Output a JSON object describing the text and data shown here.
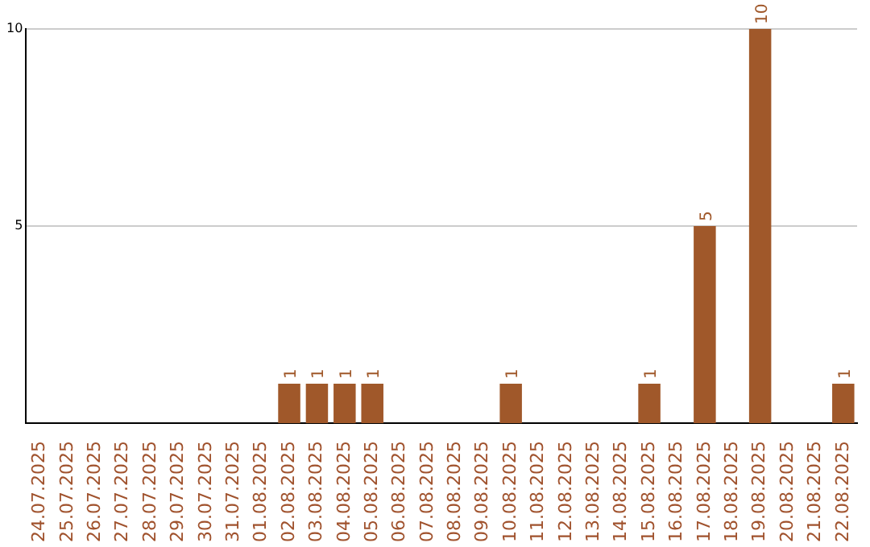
{
  "chart_data": {
    "type": "bar",
    "categories": [
      "24.07.2025",
      "25.07.2025",
      "26.07.2025",
      "27.07.2025",
      "28.07.2025",
      "29.07.2025",
      "30.07.2025",
      "31.07.2025",
      "01.08.2025",
      "02.08.2025",
      "03.08.2025",
      "04.08.2025",
      "05.08.2025",
      "06.08.2025",
      "07.08.2025",
      "08.08.2025",
      "09.08.2025",
      "10.08.2025",
      "11.08.2025",
      "12.08.2025",
      "13.08.2025",
      "14.08.2025",
      "15.08.2025",
      "16.08.2025",
      "17.08.2025",
      "18.08.2025",
      "19.08.2025",
      "20.08.2025",
      "21.08.2025",
      "22.08.2025"
    ],
    "values": [
      0,
      0,
      0,
      0,
      0,
      0,
      0,
      0,
      0,
      1,
      1,
      1,
      1,
      0,
      0,
      0,
      0,
      1,
      0,
      0,
      0,
      0,
      1,
      0,
      5,
      0,
      10,
      0,
      0,
      1
    ],
    "value_labels": [
      null,
      null,
      null,
      null,
      null,
      null,
      null,
      null,
      null,
      "1",
      "1",
      "1",
      "1",
      null,
      null,
      null,
      null,
      "1",
      null,
      null,
      null,
      null,
      "1",
      null,
      "5",
      null,
      "10",
      null,
      null,
      "1"
    ],
    "color": "#a0582a",
    "ylim": [
      0,
      10
    ],
    "yticks": [
      5,
      10
    ],
    "grid": "y",
    "legend": false
  }
}
